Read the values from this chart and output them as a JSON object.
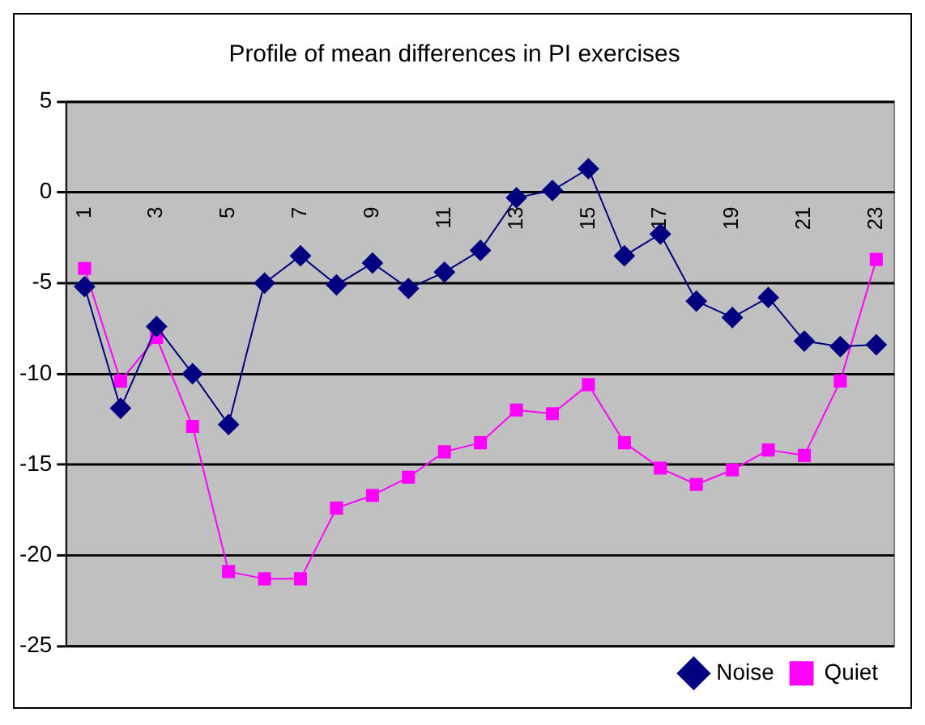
{
  "chart_data": {
    "type": "line",
    "title": "Profile of mean differences in PI exercises",
    "categories": [
      "1",
      null,
      "3",
      null,
      "5",
      null,
      "7",
      null,
      "9",
      null,
      "11",
      null,
      "13",
      null,
      "15",
      null,
      "17",
      null,
      "19",
      null,
      "21",
      null,
      "23"
    ],
    "series": [
      {
        "name": "Noise",
        "color": "#000080",
        "marker": "diamond",
        "values": [
          -5.2,
          -11.9,
          -7.4,
          -10,
          -12.8,
          -5,
          -3.5,
          -5.1,
          -3.9,
          -5.3,
          -4.4,
          -3.2,
          -0.3,
          0.1,
          1.3,
          -3.5,
          -2.3,
          -6,
          -6.9,
          -5.8,
          -8.2,
          -8.5,
          -8.4
        ]
      },
      {
        "name": "Quiet",
        "color": "#ff00ff",
        "marker": "square",
        "values": [
          -4.2,
          -10.4,
          -8,
          -12.9,
          -20.9,
          -21.3,
          -21.3,
          -17.4,
          -16.7,
          -15.7,
          -14.3,
          -13.8,
          -12,
          -12.2,
          -10.6,
          -13.8,
          -15.2,
          -16.1,
          -15.3,
          -14.2,
          -14.5,
          -10.4,
          -3.7
        ]
      }
    ],
    "ylim": [
      -25,
      5
    ],
    "yticks": [
      -25,
      -20,
      -15,
      -10,
      -5,
      0,
      5
    ],
    "grid": "y",
    "legend": "bottom right"
  }
}
